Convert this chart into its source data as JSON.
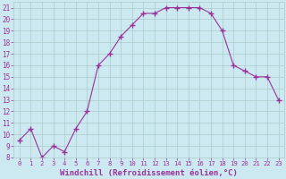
{
  "x": [
    0,
    1,
    2,
    3,
    4,
    5,
    6,
    7,
    8,
    9,
    10,
    11,
    12,
    13,
    14,
    15,
    16,
    17,
    18,
    19,
    20,
    21,
    22,
    23
  ],
  "y": [
    9.5,
    10.5,
    8.0,
    9.0,
    8.5,
    10.5,
    12.0,
    16.0,
    17.0,
    18.5,
    19.5,
    20.5,
    20.5,
    21.0,
    21.0,
    21.0,
    21.0,
    20.5,
    19.0,
    16.0,
    15.5,
    15.0,
    15.0,
    13.0
  ],
  "line_color": "#993399",
  "marker": "+",
  "marker_size": 4,
  "background_color": "#cce8f0",
  "grid_color": "#aacccc",
  "xlabel": "Windchill (Refroidissement éolien,°C)",
  "xlabel_color": "#993399",
  "ylim": [
    8,
    21.5
  ],
  "xlim": [
    -0.5,
    23.5
  ],
  "yticks": [
    8,
    9,
    10,
    11,
    12,
    13,
    14,
    15,
    16,
    17,
    18,
    19,
    20,
    21
  ],
  "xticks": [
    0,
    1,
    2,
    3,
    4,
    5,
    6,
    7,
    8,
    9,
    10,
    11,
    12,
    13,
    14,
    15,
    16,
    17,
    18,
    19,
    20,
    21,
    22,
    23
  ],
  "tick_color": "#993399",
  "x_tick_fontsize": 5.2,
  "y_tick_fontsize": 5.5,
  "xlabel_fontsize": 6.5
}
